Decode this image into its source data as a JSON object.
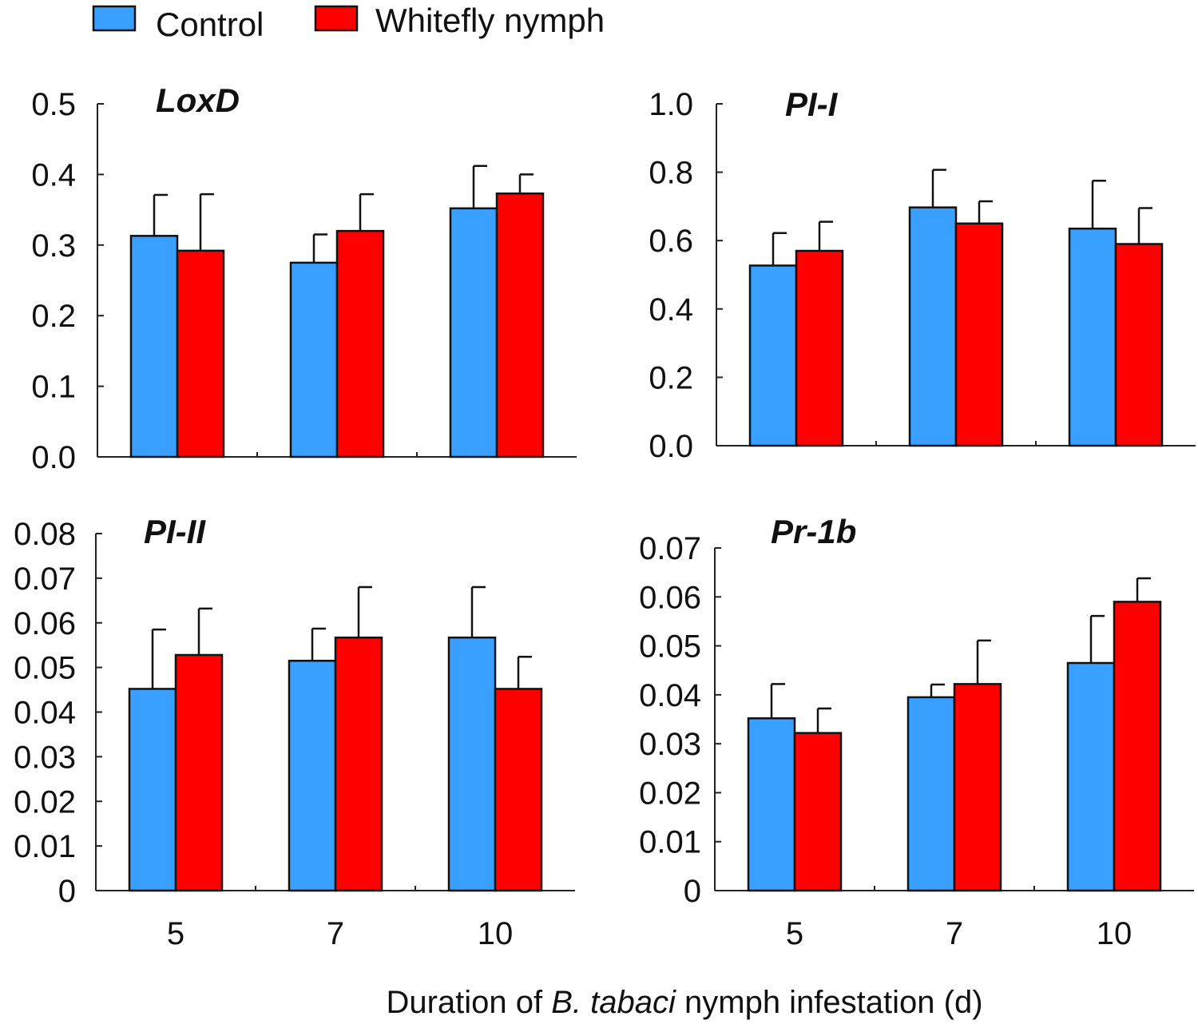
{
  "legend": {
    "series": [
      {
        "name": "Control",
        "color": "#3aa0ff"
      },
      {
        "name": "Whitefly nymph",
        "color": "#ff0000"
      }
    ]
  },
  "xlabel": {
    "prefix": "Duration of ",
    "species": "B. tabaci",
    "suffix": " nymph infestation (d)"
  },
  "chart_data": [
    {
      "type": "bar",
      "title": "LoxD",
      "categories": [
        "5",
        "7",
        "10"
      ],
      "ylim": [
        0,
        0.5
      ],
      "yticks": [
        "0.0",
        "0.1",
        "0.2",
        "0.3",
        "0.4",
        "0.5"
      ],
      "series": [
        {
          "name": "Control",
          "values": [
            0.313,
            0.275,
            0.352
          ],
          "errors": [
            0.058,
            0.04,
            0.06
          ]
        },
        {
          "name": "Whitefly nymph",
          "values": [
            0.292,
            0.32,
            0.373
          ],
          "errors": [
            0.08,
            0.052,
            0.027
          ]
        }
      ]
    },
    {
      "type": "bar",
      "title": "PI-I",
      "categories": [
        "5",
        "7",
        "10"
      ],
      "ylim": [
        0,
        1.0
      ],
      "yticks": [
        "0.0",
        "0.2",
        "0.4",
        "0.6",
        "0.8",
        "1.0"
      ],
      "series": [
        {
          "name": "Control",
          "values": [
            0.527,
            0.697,
            0.635
          ],
          "errors": [
            0.095,
            0.11,
            0.14
          ]
        },
        {
          "name": "Whitefly nymph",
          "values": [
            0.57,
            0.65,
            0.59
          ],
          "errors": [
            0.085,
            0.065,
            0.105
          ]
        }
      ]
    },
    {
      "type": "bar",
      "title": "PI-II",
      "categories": [
        "5",
        "7",
        "10"
      ],
      "ylim": [
        0,
        0.08
      ],
      "yticks": [
        "0",
        "0.01",
        "0.02",
        "0.03",
        "0.04",
        "0.05",
        "0.06",
        "0.07",
        "0.08"
      ],
      "series": [
        {
          "name": "Control",
          "values": [
            0.0452,
            0.0515,
            0.0567
          ],
          "errors": [
            0.0133,
            0.0072,
            0.0113
          ]
        },
        {
          "name": "Whitefly nymph",
          "values": [
            0.0528,
            0.0567,
            0.0452
          ],
          "errors": [
            0.0104,
            0.0113,
            0.0072
          ]
        }
      ]
    },
    {
      "type": "bar",
      "title": "Pr-1b",
      "categories": [
        "5",
        "7",
        "10"
      ],
      "ylim": [
        0,
        0.07
      ],
      "yticks": [
        "0",
        "0.01",
        "0.02",
        "0.03",
        "0.04",
        "0.05",
        "0.06",
        "0.07"
      ],
      "series": [
        {
          "name": "Control",
          "values": [
            0.0352,
            0.0395,
            0.0465
          ],
          "errors": [
            0.007,
            0.0026,
            0.0096
          ]
        },
        {
          "name": "Whitefly nymph",
          "values": [
            0.0322,
            0.0422,
            0.059
          ],
          "errors": [
            0.005,
            0.0089,
            0.0048
          ]
        }
      ]
    }
  ]
}
